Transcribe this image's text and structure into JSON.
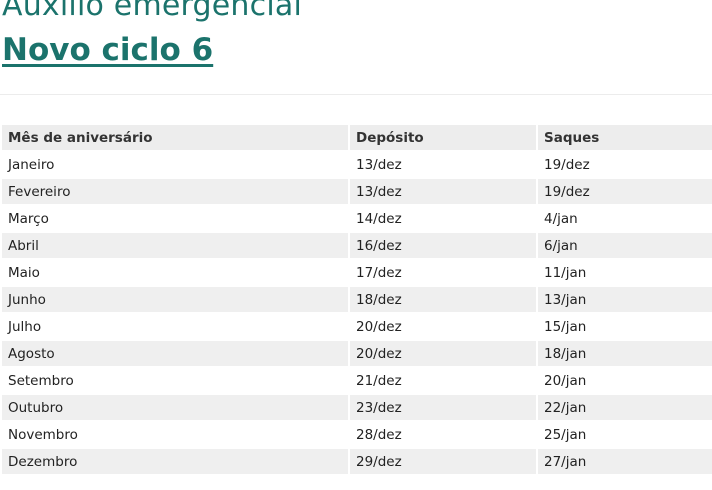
{
  "title": "Auxilio emergencial",
  "subtitle": "Novo ciclo 6",
  "table": {
    "headers": [
      "Mês de aniversário",
      "Depósito",
      "Saques"
    ],
    "rows": [
      [
        "Janeiro",
        "13/dez",
        "19/dez"
      ],
      [
        "Fevereiro",
        "13/dez",
        "19/dez"
      ],
      [
        "Março",
        "14/dez",
        "4/jan"
      ],
      [
        "Abril",
        "16/dez",
        "6/jan"
      ],
      [
        "Maio",
        "17/dez",
        "11/jan"
      ],
      [
        "Junho",
        "18/dez",
        "13/jan"
      ],
      [
        "Julho",
        "20/dez",
        "15/jan"
      ],
      [
        "Agosto",
        "20/dez",
        "18/jan"
      ],
      [
        "Setembro",
        "21/dez",
        "20/jan"
      ],
      [
        "Outubro",
        "23/dez",
        "22/jan"
      ],
      [
        "Novembro",
        "28/dez",
        "25/jan"
      ],
      [
        "Dezembro",
        "29/dez",
        "27/jan"
      ]
    ]
  },
  "colors": {
    "accent": "#1b736c",
    "stripe": "#efefef"
  }
}
